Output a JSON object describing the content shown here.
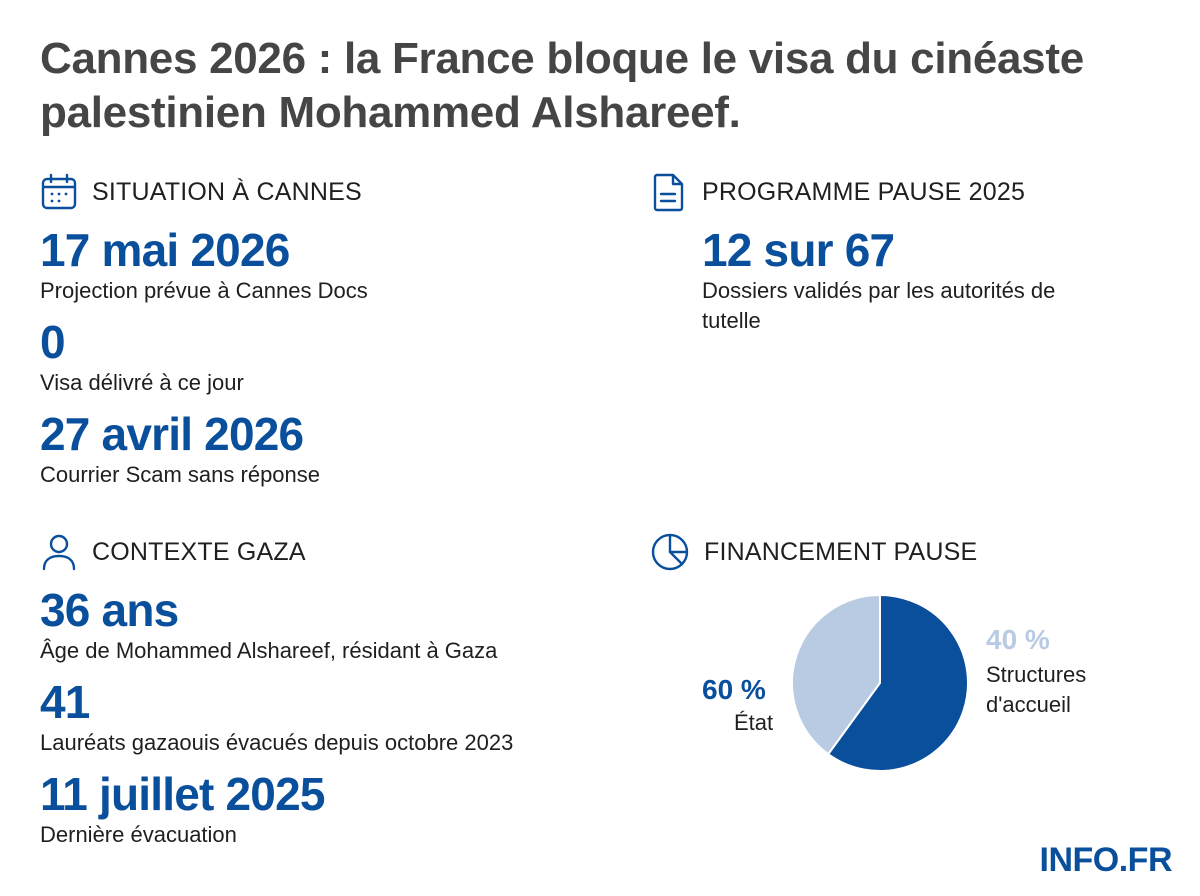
{
  "title": "Cannes 2026 : la France bloque le visa du cinéaste palestinien Mohammed Alshareef.",
  "sections": {
    "situation": {
      "icon": "calendar-icon",
      "title": "SITUATION À CANNES",
      "stats": [
        {
          "value": "17 mai 2026",
          "label": "Projection prévue à Cannes Docs"
        },
        {
          "value": "0",
          "label": "Visa délivré à ce jour"
        },
        {
          "value": "27 avril 2026",
          "label": "Courrier Scam sans réponse"
        }
      ]
    },
    "programme": {
      "icon": "document-icon",
      "title": "PROGRAMME PAUSE 2025",
      "stats": [
        {
          "value": "12 sur 67",
          "label": "Dossiers validés par les autorités de tutelle"
        }
      ]
    },
    "contexte": {
      "icon": "person-icon",
      "title": "CONTEXTE GAZA",
      "stats": [
        {
          "value": "36 ans",
          "label": "Âge de Mohammed Alshareef, résidant à Gaza"
        },
        {
          "value": "41",
          "label": "Lauréats gazaouis évacués depuis octobre 2023"
        },
        {
          "value": "11 juillet 2025",
          "label": "Dernière évacuation"
        }
      ]
    },
    "financement": {
      "icon": "pie-chart-icon",
      "title": "FINANCEMENT PAUSE"
    }
  },
  "chart_data": {
    "type": "pie",
    "slices": [
      {
        "label": "État",
        "value_text": "60 %",
        "value": 60,
        "color": "#0a4f9c"
      },
      {
        "label": "Structures d'accueil",
        "value_text": "40 %",
        "value": 40,
        "color": "#b9cbe2"
      }
    ]
  },
  "logo": "INFO.FR",
  "colors": {
    "accent": "#0a4f9c",
    "light": "#b9cbe2",
    "title": "#454545"
  }
}
